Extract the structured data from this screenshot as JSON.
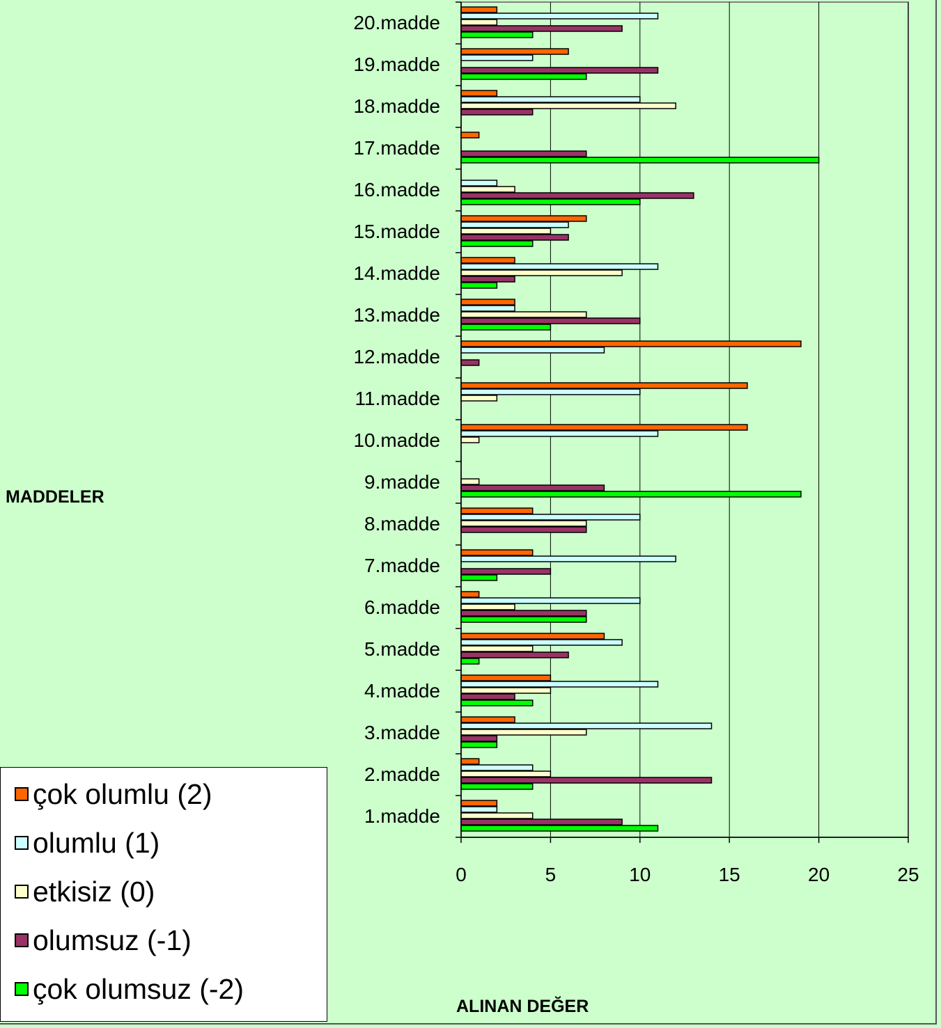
{
  "chart_data": {
    "type": "bar",
    "orientation": "horizontal",
    "xlabel": "ALINAN DEĞER",
    "ylabel": "MADDELER",
    "xlim": [
      0,
      25
    ],
    "xticks": [
      0,
      5,
      10,
      15,
      20,
      25
    ],
    "grid": "vertical",
    "legend_position": "bottom-left",
    "categories": [
      "1.madde",
      "2.madde",
      "3.madde",
      "4.madde",
      "5.madde",
      "6.madde",
      "7.madde",
      "8.madde",
      "9.madde",
      "10.madde",
      "11.madde",
      "12.madde",
      "13.madde",
      "14.madde",
      "15.madde",
      "16.madde",
      "17.madde",
      "18.madde",
      "19.madde",
      "20.madde"
    ],
    "series": [
      {
        "name": "çok olumlu (2)",
        "color": "#ff6600",
        "values": [
          2,
          1,
          3,
          5,
          8,
          1,
          4,
          4,
          0,
          16,
          16,
          19,
          3,
          3,
          7,
          0,
          1,
          2,
          6,
          2
        ]
      },
      {
        "name": "olumlu (1)",
        "color": "#ccffff",
        "values": [
          2,
          4,
          14,
          11,
          9,
          10,
          12,
          10,
          0,
          11,
          10,
          8,
          3,
          11,
          6,
          2,
          0,
          10,
          4,
          11
        ]
      },
      {
        "name": "etkisiz (0)",
        "color": "#ffffcc",
        "values": [
          4,
          5,
          7,
          5,
          4,
          3,
          0,
          7,
          1,
          1,
          2,
          0,
          7,
          9,
          5,
          3,
          0,
          12,
          0,
          2
        ]
      },
      {
        "name": "olumsuz (-1)",
        "color": "#993366",
        "values": [
          9,
          14,
          2,
          3,
          6,
          7,
          5,
          7,
          8,
          0,
          0,
          1,
          10,
          3,
          6,
          13,
          7,
          4,
          11,
          9
        ]
      },
      {
        "name": "çok olumsuz (-2)",
        "color": "#00ff00",
        "values": [
          11,
          4,
          2,
          4,
          1,
          7,
          2,
          0,
          19,
          0,
          0,
          0,
          5,
          2,
          4,
          10,
          20,
          0,
          7,
          4
        ]
      }
    ]
  }
}
